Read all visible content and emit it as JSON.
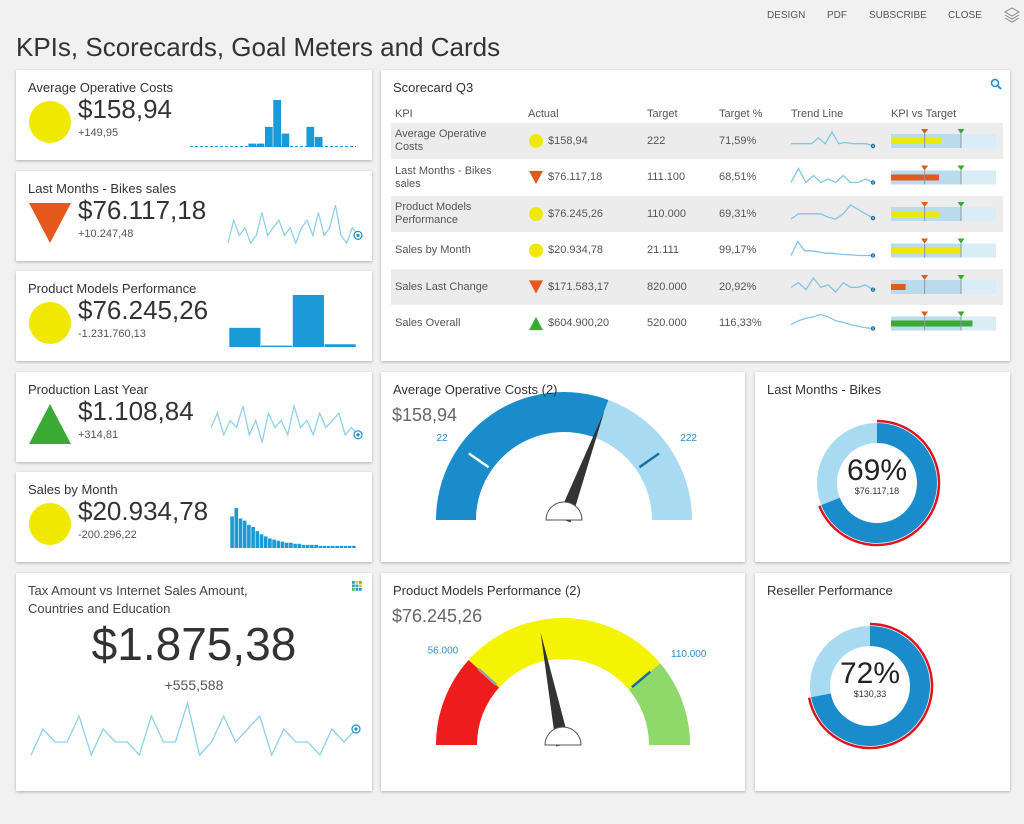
{
  "toolbar": [
    "DESIGN",
    "PDF",
    "SUBSCRIBE",
    "CLOSE"
  ],
  "title": "KPIs, Scorecards, Goal Meters and Cards",
  "indicator_colors": {
    "neutral": "#efe800",
    "down": "#e5581c",
    "up": "#3aaa35"
  },
  "kpi_cards": [
    {
      "title": "Average Operative Costs",
      "indicator": "neutral",
      "value": "$158,94",
      "delta": "+149,95",
      "chart": {
        "type": "bar",
        "color": "#1a9ad6",
        "baseline": "dashed",
        "values": [
          0,
          0,
          0,
          0,
          0,
          0,
          0,
          1,
          1,
          6,
          14,
          4,
          0,
          0,
          6,
          3,
          0,
          0,
          0,
          0
        ]
      }
    },
    {
      "title": "Last Months - Bikes sales",
      "indicator": "down",
      "value": "$76.117,18",
      "delta": "+10.247,48",
      "chart": {
        "type": "line",
        "color": "#8fd0ec",
        "values": [
          2,
          5,
          3,
          4,
          2,
          3,
          6,
          3,
          4,
          5,
          3,
          4,
          2,
          4,
          5,
          3,
          6,
          3,
          4,
          7,
          3,
          2,
          4,
          3
        ]
      }
    },
    {
      "title": "Product Models Performance",
      "indicator": "neutral",
      "value": "$76.245,26",
      "delta": "-1.231.760,13",
      "chart": {
        "type": "bar",
        "color": "#1a9ad6",
        "values": [
          14,
          1,
          38,
          2
        ]
      }
    },
    {
      "title": "Production Last Year",
      "indicator": "up",
      "value": "$1.108,84",
      "delta": "+314,81",
      "chart": {
        "type": "line",
        "color": "#8fd0ec",
        "values": [
          4,
          6,
          3,
          5,
          4,
          7,
          3,
          5,
          2,
          6,
          4,
          5,
          3,
          7,
          4,
          5,
          3,
          6,
          4,
          5,
          6,
          3,
          4,
          3
        ]
      }
    },
    {
      "title": "Sales by Month",
      "indicator": "neutral",
      "value": "$20.934,78",
      "delta": "-200.296,22",
      "chart": {
        "type": "bar",
        "color": "#1a9ad6",
        "values": [
          30,
          38,
          28,
          26,
          22,
          20,
          16,
          13,
          11,
          9,
          8,
          7,
          6,
          5,
          5,
          4,
          4,
          3,
          3,
          3,
          3,
          2,
          2,
          2,
          2,
          2,
          2,
          2,
          2,
          2
        ]
      }
    }
  ],
  "big_card": {
    "title": "Tax Amount vs Internet Sales Amount, Countries and Education",
    "value": "$1.875,38",
    "delta": "+555,588",
    "chart": {
      "type": "line",
      "color": "#8fd0ec",
      "values": [
        2,
        4,
        3,
        3,
        5,
        2,
        4,
        3,
        3,
        2,
        5,
        3,
        3,
        6,
        2,
        3,
        5,
        3,
        4,
        5,
        2,
        4,
        3,
        3,
        2,
        4,
        3,
        4
      ]
    }
  },
  "scorecard": {
    "title": "Scorecard Q3",
    "columns": [
      "KPI",
      "Actual",
      "Target",
      "Target %",
      "Trend Line",
      "KPI vs Target"
    ],
    "bullet": {
      "max": 150,
      "target": 100,
      "previous": 48
    },
    "rows": [
      {
        "kpi": "Average Operative Costs",
        "indicator": "neutral",
        "actual": "$158,94",
        "target": "222",
        "target_pct": {
          "value": 71.59,
          "label": "71,59%"
        },
        "trend": [
          3,
          3,
          3,
          3,
          4,
          3,
          5,
          3,
          3.2,
          3,
          3,
          3,
          2.6
        ]
      },
      {
        "kpi": "Last Months - Bikes sales",
        "indicator": "down",
        "actual": "$76.117,18",
        "target": "111.100",
        "target_pct": {
          "value": 68.51,
          "label": "68,51%"
        },
        "trend": [
          3,
          3.4,
          3,
          3.2,
          3,
          3.1,
          3,
          3.2,
          3,
          3,
          3.1,
          3
        ]
      },
      {
        "kpi": "Product Models Performance",
        "indicator": "neutral",
        "actual": "$76.245,26",
        "target": "110.000",
        "target_pct": {
          "value": 69.31,
          "label": "69,31%"
        },
        "trend": [
          2.4,
          3,
          3,
          3,
          3,
          2.6,
          2.4,
          3,
          4,
          3.5,
          3,
          2.5
        ]
      },
      {
        "kpi": "Sales by Month",
        "indicator": "neutral",
        "actual": "$20.934,78",
        "target": "21.111",
        "target_pct": {
          "value": 99.17,
          "label": "99,17%"
        },
        "trend": [
          2,
          5,
          3,
          3,
          2.8,
          2.5,
          2.5,
          2.3,
          2.2,
          2.1,
          2,
          2,
          2
        ]
      },
      {
        "kpi": "Sales Last Change",
        "indicator": "down",
        "actual": "$171.583,17",
        "target": "820.000",
        "target_pct": {
          "value": 20.92,
          "label": "20,92%"
        },
        "trend": [
          3,
          3.2,
          2.9,
          3.4,
          3,
          3.1,
          2.8,
          3.2,
          3,
          3,
          3.1,
          2.9
        ]
      },
      {
        "kpi": "Sales Overall",
        "indicator": "up",
        "actual": "$604.900,20",
        "target": "520.000",
        "target_pct": {
          "value": 116.33,
          "label": "116,33%"
        },
        "trend": [
          2,
          2.5,
          2.8,
          3,
          3.3,
          3,
          2.5,
          2.3,
          2,
          1.8,
          1.6,
          1.5
        ]
      }
    ]
  },
  "gauges": [
    {
      "title": "Average Operative Costs (2)",
      "style": "fill",
      "colors": [
        "#1a8ccc",
        "#a8dbf2"
      ],
      "value": {
        "value": 158.94,
        "label": "$158,94"
      },
      "ticks": [
        22,
        222
      ]
    },
    {
      "title": "Product Models Performance (2)",
      "style": "zones",
      "colors": [
        "#ee1c1c",
        "#f4f400",
        "#8fd86a"
      ],
      "value": {
        "value": 76245.26,
        "label": "$76.245,26"
      },
      "ticks": [
        {
          "value": 56000,
          "label": "56.000"
        },
        {
          "value": 110000,
          "label": "110.000"
        }
      ]
    }
  ],
  "donuts": [
    {
      "title": "Last Months - Bikes",
      "percent": {
        "value": 69,
        "label": "69%"
      },
      "amount": "$76.117,18"
    },
    {
      "title": "Reseller Performance",
      "percent": {
        "value": 72,
        "label": "72%"
      },
      "amount": "$130,33"
    }
  ]
}
